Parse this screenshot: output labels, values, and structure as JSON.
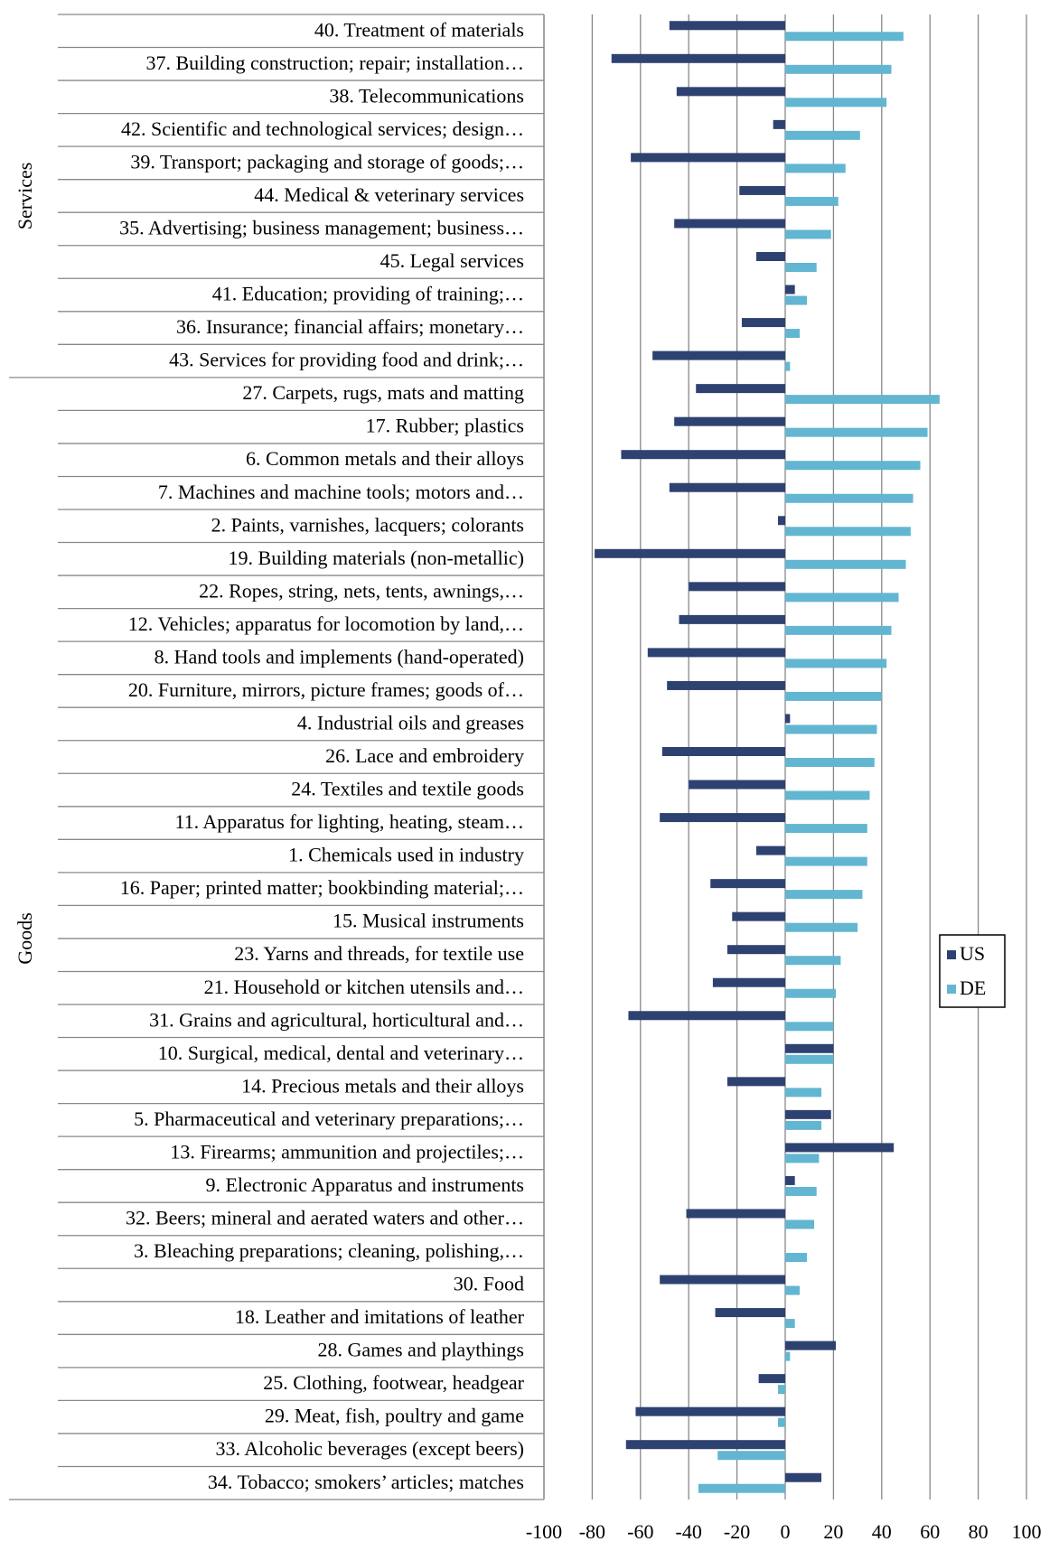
{
  "chart_data": {
    "type": "hbar",
    "categories": [
      "40. Treatment of materials",
      "37. Building construction;  repair;  installation…",
      "38. Telecommunications",
      "42. Scientific and technological services; design…",
      "39. Transport; packaging and storage of goods;…",
      "44. Medical & veterinary services",
      "35. Advertising; business management; business…",
      "45. Legal services",
      "41. Education; providing of training;…",
      "36. Insurance;  financial affairs;  monetary…",
      "43. Services for providing food and drink;…",
      "27. Carpets, rugs, mats and matting",
      "17. Rubber; plastics",
      "6. Common metals and their alloys",
      "7. Machines and machine tools; motors and…",
      "2. Paints, varnishes, lacquers; colorants",
      "19. Building materials (non-metallic)",
      "22. Ropes, string, nets, tents, awnings,…",
      "12. Vehicles; apparatus for locomotion by land,…",
      "8. Hand tools and implements (hand-operated)",
      "20. Furniture, mirrors, picture frames; goods of…",
      "4. Industrial oils and greases",
      "26. Lace and embroidery",
      "24. Textiles and textile goods",
      "11. Apparatus for lighting, heating, steam…",
      "1. Chemicals used in industry",
      "16. Paper; printed matter; bookbinding material;…",
      "15. Musical instruments",
      "23. Yarns and threads, for textile use",
      "21. Household or kitchen utensils and…",
      "31. Grains and agricultural, horticultural and…",
      "10. Surgical, medical, dental and veterinary…",
      "14. Precious metals and their alloys",
      "5. Pharmaceutical and veterinary preparations;…",
      "13. Firearms; ammunition and projectiles;…",
      "9. Electronic Apparatus and instruments",
      "32. Beers; mineral and aerated waters and other…",
      "3. Bleaching preparations; cleaning, polishing,…",
      "30. Food",
      "18. Leather and imitations of leather",
      "28. Games and playthings",
      "25. Clothing, footwear, headgear",
      "29. Meat, fish, poultry and game",
      "33. Alcoholic beverages (except beers)",
      "34. Tobacco; smokers’ articles; matches"
    ],
    "category_groups": [
      "Services",
      "Services",
      "Services",
      "Services",
      "Services",
      "Services",
      "Services",
      "Services",
      "Services",
      "Services",
      "Services",
      "Goods",
      "Goods",
      "Goods",
      "Goods",
      "Goods",
      "Goods",
      "Goods",
      "Goods",
      "Goods",
      "Goods",
      "Goods",
      "Goods",
      "Goods",
      "Goods",
      "Goods",
      "Goods",
      "Goods",
      "Goods",
      "Goods",
      "Goods",
      "Goods",
      "Goods",
      "Goods",
      "Goods",
      "Goods",
      "Goods",
      "Goods",
      "Goods",
      "Goods",
      "Goods",
      "Goods",
      "Goods",
      "Goods",
      "Goods"
    ],
    "series": [
      {
        "name": "US",
        "color": "#2e4272",
        "values": [
          -48,
          -72,
          -45,
          -5,
          -64,
          -19,
          -46,
          -12,
          4,
          -18,
          -55,
          -37,
          -46,
          -68,
          -48,
          -3,
          -79,
          -40,
          -44,
          -57,
          -49,
          2,
          -51,
          -40,
          -52,
          -12,
          -31,
          -22,
          -24,
          -30,
          -65,
          20,
          -24,
          19,
          45,
          4,
          -41,
          0,
          -52,
          -29,
          21,
          -11,
          -62,
          -66,
          15
        ]
      },
      {
        "name": "DE",
        "color": "#62b6d1",
        "values": [
          49,
          44,
          42,
          31,
          25,
          22,
          19,
          13,
          9,
          6,
          2,
          64,
          59,
          56,
          53,
          52,
          50,
          47,
          44,
          42,
          40,
          38,
          37,
          35,
          34,
          34,
          32,
          30,
          23,
          21,
          20,
          20,
          15,
          15,
          14,
          13,
          12,
          9,
          6,
          4,
          2,
          -3,
          -3,
          -28,
          -36
        ]
      }
    ],
    "xlim": [
      -100,
      100
    ],
    "xticks": [
      -100,
      -80,
      -60,
      -40,
      -20,
      0,
      20,
      40,
      60,
      80,
      100
    ],
    "grid": true,
    "legend": "right"
  }
}
